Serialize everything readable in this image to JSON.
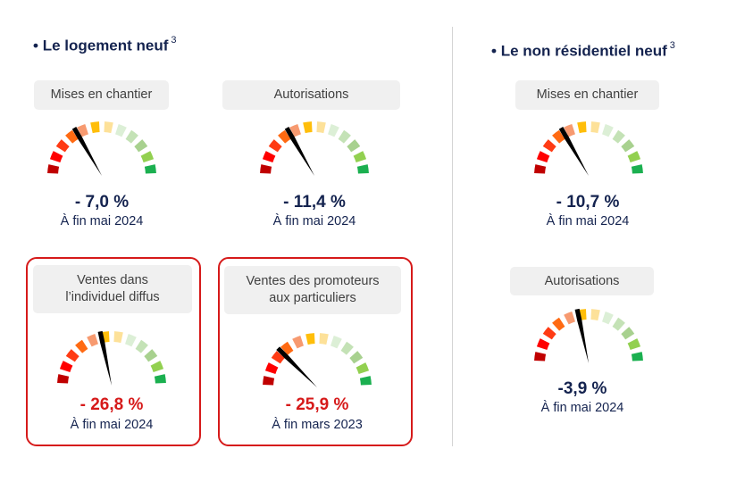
{
  "sections": [
    {
      "title": "Le logement neuf",
      "footnote": "3"
    },
    {
      "title": "Le non résidentiel neuf",
      "footnote": "3"
    }
  ],
  "gauge_colors": [
    "#c00000",
    "#ff0000",
    "#ff3b14",
    "#ff6a12",
    "#f79a70",
    "#ffbe0a",
    "#fde199",
    "#dcefd6",
    "#c4e2b6",
    "#a8d18f",
    "#92d050",
    "#1bb050"
  ],
  "chart_data": [
    {
      "type": "gauge",
      "section": "Le logement neuf",
      "label": "Mises en chantier",
      "value_text": "- 7,0 %",
      "value": -7.0,
      "unit": "%",
      "period": "À fin mai 2024",
      "needle_segment": 4.0,
      "segments": 12,
      "highlighted": false
    },
    {
      "type": "gauge",
      "section": "Le logement neuf",
      "label": "Autorisations",
      "value_text": "- 11,4 %",
      "value": -11.4,
      "unit": "%",
      "period": "À fin mai 2024",
      "needle_segment": 4.0,
      "segments": 12,
      "highlighted": false
    },
    {
      "type": "gauge",
      "section": "Le logement neuf",
      "label": "Ventes dans l’individuel diffus",
      "label_lines": [
        "Ventes dans",
        "l’individuel diffus"
      ],
      "value_text": "- 26,8 %",
      "value": -26.8,
      "unit": "%",
      "period": "À fin mai 2024",
      "needle_segment": 5.2,
      "segments": 12,
      "highlighted": true
    },
    {
      "type": "gauge",
      "section": "Le logement neuf",
      "label": "Ventes des promoteurs aux particuliers",
      "label_lines": [
        "Ventes des promoteurs",
        "aux particuliers"
      ],
      "value_text": "- 25,9 %",
      "value": -25.9,
      "unit": "%",
      "period": "À fin mars 2023",
      "needle_segment": 3.0,
      "segments": 12,
      "highlighted": true
    },
    {
      "type": "gauge",
      "section": "Le non résidentiel neuf",
      "label": "Mises en chantier",
      "value_text": "- 10,7 %",
      "value": -10.7,
      "unit": "%",
      "period": "À fin mai 2024",
      "needle_segment": 4.0,
      "segments": 12,
      "highlighted": false
    },
    {
      "type": "gauge",
      "section": "Le non résidentiel neuf",
      "label": "Autorisations",
      "value_text": "-3,9 %",
      "value": -3.9,
      "unit": "%",
      "period": "À fin mai 2024",
      "needle_segment": 5.2,
      "segments": 12,
      "highlighted": false
    }
  ]
}
